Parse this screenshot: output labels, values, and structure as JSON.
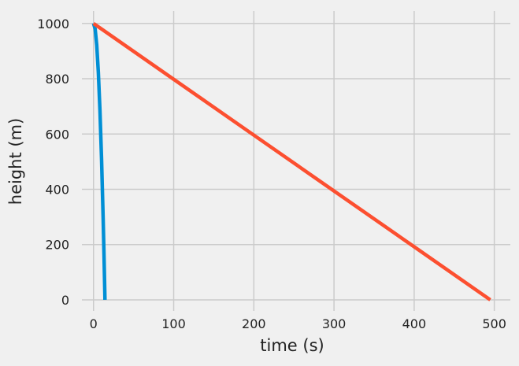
{
  "chart_data": {
    "type": "line",
    "title": "",
    "xlabel": "time (s)",
    "ylabel": "height (m)",
    "xlim": [
      -14.5,
      520
    ],
    "ylim": [
      -40,
      1045
    ],
    "x_ticks": [
      0,
      100,
      200,
      300,
      400,
      500
    ],
    "y_ticks": [
      0,
      200,
      400,
      600,
      800,
      1000
    ],
    "x_tick_labels": [
      "0",
      "100",
      "200",
      "300",
      "400",
      "500"
    ],
    "y_tick_labels": [
      "0",
      "200",
      "400",
      "600",
      "800",
      "1000"
    ],
    "grid": true,
    "legend": "none",
    "series": [
      {
        "color": "#008fd5",
        "points": [
          [
            0,
            1000
          ],
          [
            2,
            980.4
          ],
          [
            4,
            921.6
          ],
          [
            6,
            823.6
          ],
          [
            8,
            686.4
          ],
          [
            10,
            510.0
          ],
          [
            12,
            294.4
          ],
          [
            13,
            171.8
          ],
          [
            14.28,
            0
          ]
        ]
      },
      {
        "color": "#fc4f30",
        "points": [
          [
            0,
            1000
          ],
          [
            100,
            798
          ],
          [
            200,
            596
          ],
          [
            300,
            394
          ],
          [
            400,
            192
          ],
          [
            495,
            0
          ]
        ]
      }
    ]
  },
  "style": {
    "background": "#f0f0f0",
    "grid_color": "#cbcbcb",
    "text_color": "#222222"
  }
}
